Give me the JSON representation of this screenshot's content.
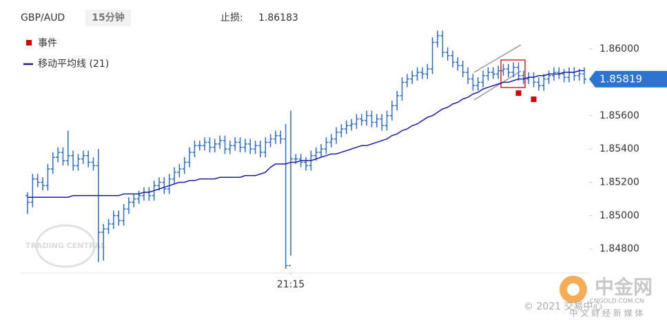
{
  "chart_data": {
    "type": "ohlc",
    "title": "GBP/AUD",
    "interval": "15分钟",
    "stop_loss": {
      "label": "止损:",
      "value": 1.86183
    },
    "categories": [
      null,
      null,
      null,
      null,
      null,
      null,
      null,
      null,
      null,
      null,
      null,
      null,
      null,
      null,
      null,
      null,
      null,
      null,
      null,
      null,
      null,
      null,
      null,
      null,
      null,
      null,
      null,
      null,
      null,
      null,
      null,
      null,
      null,
      null,
      null,
      null,
      null,
      null,
      null,
      null,
      null,
      null,
      null,
      null,
      null,
      null,
      null,
      null,
      null,
      null,
      null,
      null,
      "21:15",
      null,
      null,
      null,
      null,
      null,
      null,
      null,
      null,
      null,
      null,
      null,
      null,
      null,
      null,
      null,
      null,
      null,
      null,
      null,
      null,
      null,
      null,
      null,
      null,
      null,
      null,
      null,
      null,
      null,
      null,
      null,
      null,
      null,
      null,
      null,
      null,
      null,
      null,
      null,
      null,
      null,
      null,
      null,
      null,
      null,
      null,
      null,
      null,
      null,
      null,
      null,
      null,
      null,
      null,
      null,
      null,
      null,
      null
    ],
    "ohlc": {
      "color": "#2b6cc4",
      "open": [
        1.8512,
        1.8508,
        1.8522,
        1.852,
        1.8518,
        1.8528,
        1.8535,
        1.8538,
        1.8533,
        1.8536,
        1.853,
        1.8534,
        1.8536,
        1.8532,
        1.853,
        1.849,
        1.8492,
        1.8495,
        1.85,
        1.8497,
        1.8504,
        1.8508,
        1.851,
        1.8512,
        1.8514,
        1.8512,
        1.8518,
        1.852,
        1.8516,
        1.8522,
        1.8526,
        1.8528,
        1.8532,
        1.8538,
        1.8542,
        1.8542,
        1.8544,
        1.8541,
        1.8543,
        1.8545,
        1.854,
        1.8542,
        1.8544,
        1.8541,
        1.8543,
        1.854,
        1.8542,
        1.8538,
        1.8544,
        1.8546,
        1.8548,
        1.8546,
        1.847,
        1.8534,
        1.8534,
        1.8532,
        1.853,
        1.8536,
        1.8538,
        1.854,
        1.8544,
        1.8546,
        1.855,
        1.8552,
        1.8554,
        1.8555,
        1.8558,
        1.8557,
        1.856,
        1.8556,
        1.8558,
        1.8554,
        1.856,
        1.8566,
        1.8572,
        1.858,
        1.8582,
        1.8584,
        1.8586,
        1.8585,
        1.8588,
        1.8604,
        1.8608,
        1.8598,
        1.8596,
        1.8592,
        1.859,
        1.8586,
        1.8582,
        1.8578,
        1.858,
        1.8584,
        1.8586,
        1.8585,
        1.8587,
        1.8588,
        1.8586,
        1.8589,
        1.8584,
        1.8582,
        1.8583,
        1.858,
        1.8578,
        1.8582,
        1.8584,
        1.8586,
        1.8585,
        1.8583,
        1.8586,
        1.8584,
        1.8585
      ],
      "high": [
        1.8514,
        1.8525,
        1.8525,
        1.8523,
        1.8531,
        1.8538,
        1.8541,
        1.8541,
        1.8551,
        1.8539,
        1.8537,
        1.8539,
        1.8539,
        1.8535,
        1.854,
        1.8495,
        1.8498,
        1.8503,
        1.8503,
        1.8507,
        1.8511,
        1.8513,
        1.8515,
        1.8517,
        1.8517,
        1.8521,
        1.8523,
        1.8523,
        1.8525,
        1.8529,
        1.8531,
        1.8535,
        1.8541,
        1.8545,
        1.8545,
        1.8547,
        1.8547,
        1.8546,
        1.8548,
        1.8548,
        1.8545,
        1.8547,
        1.8547,
        1.8546,
        1.8546,
        1.8545,
        1.8545,
        1.8547,
        1.8549,
        1.8551,
        1.8551,
        1.8555,
        1.8563,
        1.8537,
        1.8537,
        1.8535,
        1.8539,
        1.8541,
        1.8543,
        1.8547,
        1.8549,
        1.8553,
        1.8555,
        1.8557,
        1.8558,
        1.8561,
        1.8561,
        1.8563,
        1.8563,
        1.8561,
        1.8561,
        1.8563,
        1.8569,
        1.8575,
        1.8583,
        1.8585,
        1.8587,
        1.8589,
        1.8589,
        1.8591,
        1.8607,
        1.8611,
        1.8611,
        1.8601,
        1.8599,
        1.8595,
        1.8593,
        1.8589,
        1.8585,
        1.8583,
        1.8587,
        1.8589,
        1.8589,
        1.859,
        1.8591,
        1.8591,
        1.8592,
        1.8592,
        1.8587,
        1.8586,
        1.8586,
        1.8583,
        1.8585,
        1.8587,
        1.8589,
        1.8589,
        1.8588,
        1.8589,
        1.8589,
        1.8588,
        1.8589
      ],
      "low": [
        1.8501,
        1.8505,
        1.8517,
        1.8515,
        1.8515,
        1.8525,
        1.8532,
        1.853,
        1.853,
        1.8527,
        1.8527,
        1.8531,
        1.8529,
        1.8527,
        1.8472,
        1.8473,
        1.8489,
        1.8492,
        1.8494,
        1.8494,
        1.8501,
        1.8505,
        1.8507,
        1.8509,
        1.8509,
        1.8509,
        1.8515,
        1.8513,
        1.8513,
        1.8519,
        1.8523,
        1.8525,
        1.8529,
        1.8535,
        1.8539,
        1.8539,
        1.8538,
        1.8538,
        1.854,
        1.8537,
        1.8537,
        1.8539,
        1.8538,
        1.8538,
        1.8537,
        1.8537,
        1.8535,
        1.8535,
        1.8541,
        1.8543,
        1.8543,
        1.8468,
        1.8476,
        1.8531,
        1.8529,
        1.8527,
        1.8527,
        1.8533,
        1.8535,
        1.8537,
        1.8541,
        1.8543,
        1.8547,
        1.8549,
        1.8551,
        1.8552,
        1.8554,
        1.8554,
        1.8553,
        1.8553,
        1.8551,
        1.8551,
        1.8557,
        1.8563,
        1.8569,
        1.8577,
        1.8579,
        1.8581,
        1.8582,
        1.8582,
        1.8585,
        1.8601,
        1.8595,
        1.8593,
        1.8589,
        1.8587,
        1.8583,
        1.8579,
        1.8575,
        1.8575,
        1.8577,
        1.8581,
        1.8582,
        1.8582,
        1.8584,
        1.8583,
        1.8583,
        1.8581,
        1.8579,
        1.8579,
        1.8577,
        1.8575,
        1.8575,
        1.8579,
        1.8581,
        1.8582,
        1.858,
        1.858,
        1.8581,
        1.8581,
        1.8579
      ],
      "close": [
        1.8508,
        1.8522,
        1.852,
        1.8518,
        1.8528,
        1.8535,
        1.8538,
        1.8533,
        1.8536,
        1.853,
        1.8534,
        1.8536,
        1.8532,
        1.853,
        1.849,
        1.8492,
        1.8495,
        1.85,
        1.8497,
        1.8504,
        1.8508,
        1.851,
        1.8512,
        1.8514,
        1.8512,
        1.8518,
        1.852,
        1.8516,
        1.8522,
        1.8526,
        1.8528,
        1.8532,
        1.8538,
        1.8542,
        1.8542,
        1.8544,
        1.8541,
        1.8543,
        1.8545,
        1.854,
        1.8542,
        1.8544,
        1.8541,
        1.8543,
        1.854,
        1.8542,
        1.8538,
        1.8544,
        1.8546,
        1.8548,
        1.8546,
        1.847,
        1.8534,
        1.8534,
        1.8532,
        1.853,
        1.8536,
        1.8538,
        1.854,
        1.8544,
        1.8546,
        1.855,
        1.8552,
        1.8554,
        1.8555,
        1.8558,
        1.8557,
        1.856,
        1.8556,
        1.8558,
        1.8554,
        1.856,
        1.8566,
        1.8572,
        1.858,
        1.8582,
        1.8584,
        1.8586,
        1.8585,
        1.8588,
        1.8604,
        1.8608,
        1.8598,
        1.8596,
        1.8592,
        1.859,
        1.8586,
        1.8582,
        1.8578,
        1.858,
        1.8584,
        1.8586,
        1.8585,
        1.8587,
        1.8588,
        1.8586,
        1.8589,
        1.8584,
        1.8582,
        1.8583,
        1.858,
        1.8578,
        1.8582,
        1.8584,
        1.8586,
        1.8585,
        1.8583,
        1.8586,
        1.8584,
        1.8585,
        1.85819
      ]
    },
    "series": [
      {
        "name": "移动平均线 (21)",
        "color": "#1a1a9e",
        "values": [
          1.8511,
          1.8511,
          1.8511,
          1.8511,
          1.8511,
          1.8511,
          1.8511,
          1.8511,
          1.8511,
          1.8512,
          1.8512,
          1.8512,
          1.8512,
          1.8512,
          1.8512,
          1.8512,
          1.8512,
          1.8512,
          1.8512,
          1.8513,
          1.8513,
          1.8513,
          1.8513,
          1.8514,
          1.8514,
          1.8515,
          1.8516,
          1.8517,
          1.8518,
          1.8519,
          1.852,
          1.852,
          1.8521,
          1.8521,
          1.8522,
          1.8522,
          1.8522,
          1.8522,
          1.8523,
          1.8523,
          1.8523,
          1.8523,
          1.8523,
          1.8524,
          1.8524,
          1.8524,
          1.8525,
          1.8526,
          1.8529,
          1.8531,
          1.8531,
          1.8531,
          1.8532,
          1.8532,
          1.8533,
          1.8533,
          1.8533,
          1.8534,
          1.8535,
          1.8536,
          1.8537,
          1.8537,
          1.8538,
          1.8539,
          1.854,
          1.8541,
          1.8542,
          1.8542,
          1.8543,
          1.8544,
          1.8545,
          1.8546,
          1.8548,
          1.8549,
          1.8551,
          1.8552,
          1.8554,
          1.8555,
          1.8557,
          1.8559,
          1.856,
          1.8562,
          1.8564,
          1.8565,
          1.8567,
          1.8568,
          1.857,
          1.8571,
          1.8573,
          1.8574,
          1.8576,
          1.8577,
          1.8578,
          1.8579,
          1.858,
          1.858,
          1.8581,
          1.8582,
          1.8582,
          1.8583,
          1.8583,
          1.8584,
          1.8584,
          1.8585,
          1.8585,
          1.8585,
          1.8586,
          1.8586,
          1.8586,
          1.8587,
          1.8587
        ]
      }
    ],
    "events": {
      "name": "事件",
      "color": "#d40000",
      "index": [
        97,
        100
      ],
      "values": [
        1.85735,
        1.85698
      ]
    },
    "ylim": [
      1.8466,
      1.8617
    ],
    "yticks": [
      {
        "value": 1.848,
        "label": "1.84800"
      },
      {
        "value": 1.85,
        "label": "1.85000"
      },
      {
        "value": 1.852,
        "label": "1.85200"
      },
      {
        "value": 1.854,
        "label": "1.85400"
      },
      {
        "value": 1.856,
        "label": "1.85600"
      },
      {
        "value": 1.858,
        "label": "1.85800"
      },
      {
        "value": 1.86,
        "label": "1.86000"
      }
    ],
    "grid": false,
    "watermarks": {
      "logo": "TRADING CENTRAL",
      "copyright": "© 2021 交易中心",
      "brand": "中金网",
      "brand_url": "CNGOLD.COM.CN",
      "brand_slogan": "中 文 财 经 新 媒 体"
    }
  }
}
